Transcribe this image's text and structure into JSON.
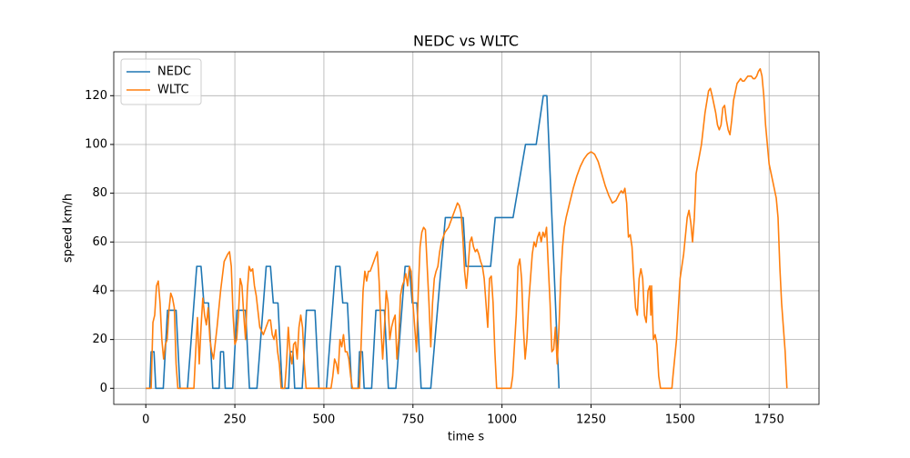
{
  "chart_data": {
    "type": "line",
    "title": "NEDC vs WLTC",
    "xlabel": "time s",
    "ylabel": "speed km/h",
    "xlim": [
      -90,
      1890
    ],
    "ylim": [
      -6.6,
      138
    ],
    "xticks": [
      0,
      250,
      500,
      750,
      1000,
      1250,
      1500,
      1750
    ],
    "yticks": [
      0,
      20,
      40,
      60,
      80,
      100,
      120
    ],
    "grid": true,
    "legend": "upper left",
    "series": [
      {
        "name": "NEDC",
        "color": "#1f77b4",
        "x": [
          0,
          11,
          15,
          23,
          28,
          49,
          61,
          85,
          96,
          117,
          143,
          155,
          163,
          176,
          188,
          195,
          206,
          210,
          218,
          223,
          244,
          256,
          280,
          291,
          312,
          338,
          350,
          358,
          371,
          383,
          390,
          401,
          405,
          413,
          418,
          439,
          451,
          475,
          486,
          507,
          533,
          545,
          553,
          566,
          578,
          585,
          596,
          600,
          608,
          613,
          634,
          646,
          670,
          681,
          702,
          728,
          740,
          748,
          761,
          773,
          780,
          800,
          841,
          891,
          899,
          968,
          981,
          1031,
          1066,
          1096,
          1116,
          1126,
          1160
        ],
        "values": [
          0,
          0,
          15,
          15,
          0,
          0,
          32,
          32,
          0,
          0,
          50,
          50,
          35,
          35,
          0,
          0,
          0,
          15,
          15,
          0,
          0,
          32,
          32,
          0,
          0,
          50,
          50,
          35,
          35,
          0,
          0,
          0,
          15,
          15,
          0,
          0,
          32,
          32,
          0,
          0,
          50,
          50,
          35,
          35,
          0,
          0,
          0,
          15,
          15,
          0,
          0,
          32,
          32,
          0,
          0,
          50,
          50,
          35,
          35,
          0,
          0,
          0,
          70,
          70,
          50,
          50,
          70,
          70,
          100,
          100,
          120,
          120,
          0
        ]
      },
      {
        "name": "WLTC",
        "color": "#ff7f0e",
        "x": [
          0,
          15,
          20,
          25,
          30,
          35,
          40,
          45,
          50,
          55,
          60,
          65,
          70,
          75,
          80,
          85,
          90,
          135,
          140,
          145,
          150,
          155,
          160,
          165,
          170,
          175,
          180,
          185,
          190,
          200,
          210,
          220,
          230,
          235,
          240,
          245,
          250,
          255,
          260,
          265,
          270,
          275,
          280,
          285,
          290,
          295,
          300,
          305,
          310,
          320,
          330,
          340,
          345,
          350,
          355,
          360,
          365,
          370,
          375,
          380,
          390,
          395,
          400,
          405,
          410,
          415,
          420,
          425,
          430,
          435,
          440,
          445,
          450,
          520,
          525,
          530,
          535,
          540,
          545,
          550,
          555,
          560,
          565,
          570,
          575,
          580,
          600,
          605,
          610,
          615,
          620,
          625,
          630,
          640,
          650,
          655,
          660,
          665,
          670,
          675,
          680,
          685,
          690,
          695,
          700,
          705,
          710,
          715,
          720,
          725,
          730,
          735,
          740,
          745,
          750,
          755,
          760,
          765,
          770,
          775,
          780,
          785,
          790,
          795,
          800,
          805,
          810,
          815,
          820,
          825,
          830,
          840,
          850,
          860,
          870,
          875,
          880,
          885,
          890,
          895,
          900,
          905,
          910,
          915,
          920,
          925,
          930,
          935,
          940,
          945,
          950,
          955,
          960,
          965,
          970,
          975,
          980,
          985,
          1025,
          1030,
          1040,
          1045,
          1050,
          1055,
          1060,
          1065,
          1070,
          1075,
          1080,
          1085,
          1090,
          1095,
          1100,
          1105,
          1110,
          1115,
          1120,
          1125,
          1130,
          1135,
          1140,
          1145,
          1150,
          1155,
          1160,
          1165,
          1170,
          1175,
          1180,
          1190,
          1200,
          1210,
          1220,
          1230,
          1240,
          1250,
          1260,
          1270,
          1280,
          1290,
          1300,
          1310,
          1320,
          1330,
          1335,
          1340,
          1345,
          1350,
          1355,
          1360,
          1365,
          1370,
          1375,
          1380,
          1385,
          1390,
          1395,
          1400,
          1405,
          1410,
          1415,
          1418,
          1420,
          1425,
          1430,
          1435,
          1440,
          1445,
          1477,
          1480,
          1490,
          1500,
          1510,
          1520,
          1525,
          1530,
          1535,
          1540,
          1545,
          1550,
          1560,
          1570,
          1580,
          1585,
          1590,
          1600,
          1605,
          1610,
          1615,
          1620,
          1625,
          1630,
          1635,
          1640,
          1645,
          1650,
          1660,
          1670,
          1675,
          1680,
          1690,
          1700,
          1705,
          1710,
          1715,
          1720,
          1725,
          1730,
          1735,
          1740,
          1750,
          1760,
          1770,
          1775,
          1780,
          1785,
          1790,
          1795,
          1800
        ],
        "values": [
          0,
          0,
          27,
          30,
          42,
          44,
          35,
          20,
          12,
          18,
          20,
          32,
          39,
          37,
          33,
          10,
          0,
          0,
          15,
          29,
          10,
          25,
          37,
          30,
          26,
          33,
          20,
          15,
          12,
          25,
          40,
          52,
          55,
          56,
          50,
          30,
          18,
          20,
          30,
          45,
          42,
          30,
          20,
          40,
          50,
          48,
          49,
          42,
          38,
          25,
          22,
          26,
          28,
          28,
          22,
          20,
          24,
          15,
          10,
          0,
          0,
          10,
          25,
          15,
          10,
          18,
          19,
          12,
          25,
          30,
          25,
          10,
          0,
          0,
          5,
          12,
          10,
          6,
          20,
          17,
          22,
          15,
          15,
          12,
          5,
          0,
          0,
          20,
          40,
          48,
          44,
          48,
          48,
          52,
          56,
          44,
          25,
          12,
          25,
          40,
          35,
          20,
          25,
          28,
          30,
          12,
          20,
          38,
          42,
          44,
          47,
          42,
          50,
          48,
          35,
          25,
          15,
          40,
          58,
          64,
          66,
          65,
          50,
          35,
          17,
          35,
          45,
          48,
          50,
          56,
          60,
          64,
          66,
          70,
          74,
          76,
          75,
          72,
          62,
          48,
          41,
          50,
          60,
          62,
          58,
          56,
          57,
          55,
          52,
          50,
          45,
          35,
          25,
          45,
          46,
          35,
          15,
          0,
          0,
          5,
          30,
          50,
          53,
          45,
          25,
          12,
          20,
          35,
          45,
          55,
          60,
          58,
          62,
          64,
          60,
          64,
          62,
          66,
          50,
          35,
          15,
          16,
          25,
          10,
          25,
          45,
          58,
          66,
          70,
          76,
          82,
          87,
          91,
          94,
          96,
          97,
          96,
          93,
          88,
          83,
          79,
          76,
          77,
          80,
          81,
          80,
          82,
          76,
          62,
          63,
          58,
          45,
          33,
          30,
          45,
          49,
          45,
          30,
          27,
          40,
          42,
          30,
          42,
          20,
          22,
          18,
          5,
          0,
          0,
          5,
          20,
          45,
          55,
          70,
          73,
          68,
          60,
          70,
          88,
          92,
          100,
          113,
          122,
          123,
          120,
          113,
          108,
          106,
          108,
          115,
          116,
          110,
          106,
          104,
          110,
          118,
          125,
          127,
          126,
          126,
          128,
          128,
          127,
          127,
          128,
          130,
          131,
          128,
          120,
          108,
          92,
          85,
          78,
          70,
          50,
          35,
          25,
          15,
          0
        ]
      }
    ]
  }
}
